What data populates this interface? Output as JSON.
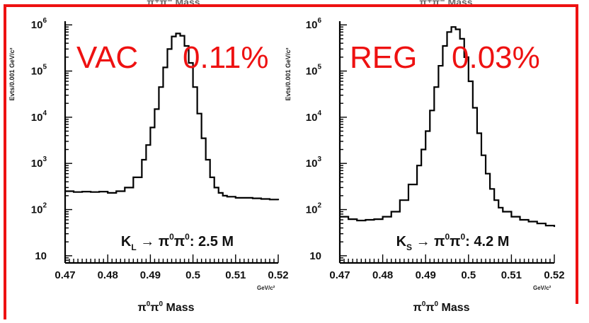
{
  "chart_data": [
    {
      "type": "line",
      "top_title": "π⁺π⁻ Mass",
      "xlabel": "π⁰π⁰ Mass",
      "xlabel_parts": {
        "base": "π",
        "sup": "0"
      },
      "xunit": "GeV/c²",
      "ylabel": "Evts/0.001 GeV/c²",
      "yscale": "log",
      "xlim": [
        0.47,
        0.52
      ],
      "ylim": [
        7,
        1200000
      ],
      "xticks": [
        "0.47",
        "0.48",
        "0.49",
        "0.5",
        "0.51",
        "0.52"
      ],
      "yticks": [
        {
          "base": "10",
          "exp": "6"
        },
        {
          "base": "10",
          "exp": "5"
        },
        {
          "base": "10",
          "exp": "4"
        },
        {
          "base": "10",
          "exp": "3"
        },
        {
          "base": "10",
          "exp": "2"
        },
        {
          "base": "10",
          "exp": ""
        }
      ],
      "annotation": {
        "k": "K",
        "sub": "L",
        "arrow": "→ π",
        "sup1": "0",
        "pi2": "π",
        "sup2": "0",
        "tail": ": 2.5 M"
      },
      "overlay": {
        "label": "VAC",
        "value": "0.11%"
      },
      "x": [
        0.47,
        0.472,
        0.474,
        0.476,
        0.478,
        0.48,
        0.482,
        0.484,
        0.486,
        0.488,
        0.489,
        0.49,
        0.491,
        0.492,
        0.493,
        0.494,
        0.495,
        0.496,
        0.497,
        0.498,
        0.499,
        0.5,
        0.501,
        0.502,
        0.503,
        0.504,
        0.505,
        0.506,
        0.507,
        0.508,
        0.51,
        0.512,
        0.514,
        0.516,
        0.518,
        0.52
      ],
      "values": [
        250,
        240,
        245,
        240,
        245,
        230,
        250,
        300,
        500,
        1200,
        2500,
        6000,
        15000,
        45000,
        120000,
        300000,
        560000,
        650000,
        580000,
        350000,
        150000,
        45000,
        12000,
        3500,
        1200,
        500,
        300,
        230,
        200,
        190,
        180,
        180,
        175,
        170,
        165,
        160
      ]
    },
    {
      "type": "line",
      "top_title": "π⁺π⁻ Mass",
      "xlabel": "π⁰π⁰ Mass",
      "xlabel_parts": {
        "base": "π",
        "sup": "0"
      },
      "xunit": "GeV/c²",
      "ylabel": "Evts/0.001 GeV/c²",
      "yscale": "log",
      "xlim": [
        0.47,
        0.52
      ],
      "ylim": [
        7,
        1200000
      ],
      "xticks": [
        "0.47",
        "0.48",
        "0.49",
        "0.5",
        "0.51",
        "0.52"
      ],
      "yticks": [
        {
          "base": "10",
          "exp": "6"
        },
        {
          "base": "10",
          "exp": "5"
        },
        {
          "base": "10",
          "exp": "4"
        },
        {
          "base": "10",
          "exp": "3"
        },
        {
          "base": "10",
          "exp": "2"
        },
        {
          "base": "10",
          "exp": ""
        }
      ],
      "annotation": {
        "k": "K",
        "sub": "S",
        "arrow": "→ π",
        "sup1": "0",
        "pi2": "π",
        "sup2": "0",
        "tail": ": 4.2 M"
      },
      "overlay": {
        "label": "REG",
        "value": "0.03%"
      },
      "x": [
        0.47,
        0.472,
        0.474,
        0.476,
        0.478,
        0.48,
        0.482,
        0.484,
        0.486,
        0.488,
        0.489,
        0.49,
        0.491,
        0.492,
        0.493,
        0.494,
        0.495,
        0.496,
        0.497,
        0.498,
        0.499,
        0.5,
        0.501,
        0.502,
        0.503,
        0.504,
        0.505,
        0.506,
        0.507,
        0.508,
        0.51,
        0.512,
        0.514,
        0.516,
        0.518,
        0.52
      ],
      "values": [
        70,
        62,
        58,
        60,
        62,
        70,
        90,
        160,
        350,
        900,
        2000,
        5000,
        14000,
        45000,
        130000,
        350000,
        700000,
        900000,
        800000,
        500000,
        200000,
        60000,
        16000,
        4500,
        1500,
        600,
        280,
        160,
        110,
        90,
        70,
        60,
        55,
        50,
        45,
        42
      ]
    }
  ]
}
